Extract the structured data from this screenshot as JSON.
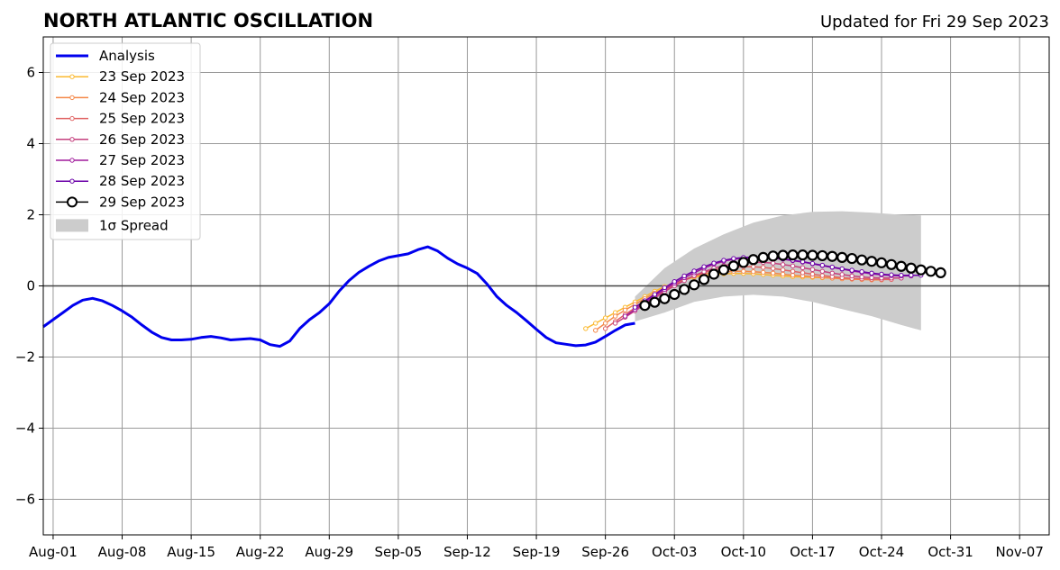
{
  "chart_data": {
    "type": "line",
    "title": "NORTH ATLANTIC OSCILLATION",
    "subtitle": "Updated for Fri 29 Sep 2023",
    "xlabel": "",
    "ylabel": "",
    "xlim": [
      "2023-07-31",
      "2023-11-10"
    ],
    "ylim": [
      -7,
      7
    ],
    "grid": true,
    "legend_position": "top-left",
    "x_ticks": [
      {
        "date": "2023-08-01",
        "label": "Aug-01"
      },
      {
        "date": "2023-08-08",
        "label": "Aug-08"
      },
      {
        "date": "2023-08-15",
        "label": "Aug-15"
      },
      {
        "date": "2023-08-22",
        "label": "Aug-22"
      },
      {
        "date": "2023-08-29",
        "label": "Aug-29"
      },
      {
        "date": "2023-09-05",
        "label": "Sep-05"
      },
      {
        "date": "2023-09-12",
        "label": "Sep-12"
      },
      {
        "date": "2023-09-19",
        "label": "Sep-19"
      },
      {
        "date": "2023-09-26",
        "label": "Sep-26"
      },
      {
        "date": "2023-10-03",
        "label": "Oct-03"
      },
      {
        "date": "2023-10-10",
        "label": "Oct-10"
      },
      {
        "date": "2023-10-17",
        "label": "Oct-17"
      },
      {
        "date": "2023-10-24",
        "label": "Oct-24"
      },
      {
        "date": "2023-10-31",
        "label": "Oct-31"
      },
      {
        "date": "2023-11-07",
        "label": "Nov-07"
      }
    ],
    "y_ticks": [
      {
        "value": -6,
        "label": "−6"
      },
      {
        "value": -4,
        "label": "−4"
      },
      {
        "value": -2,
        "label": "−2"
      },
      {
        "value": 0,
        "label": "0"
      },
      {
        "value": 2,
        "label": "2"
      },
      {
        "value": 4,
        "label": "4"
      },
      {
        "value": 6,
        "label": "6"
      }
    ],
    "analysis": {
      "name": "Analysis",
      "color": "#0000ee",
      "start_date": "2023-07-31",
      "values": [
        -1.15,
        -0.95,
        -0.75,
        -0.55,
        -0.4,
        -0.35,
        -0.42,
        -0.55,
        -0.7,
        -0.88,
        -1.1,
        -1.3,
        -1.45,
        -1.52,
        -1.52,
        -1.5,
        -1.45,
        -1.42,
        -1.46,
        -1.52,
        -1.5,
        -1.48,
        -1.52,
        -1.65,
        -1.7,
        -1.55,
        -1.2,
        -0.95,
        -0.75,
        -0.5,
        -0.15,
        0.15,
        0.38,
        0.55,
        0.7,
        0.8,
        0.85,
        0.9,
        1.02,
        1.1,
        0.98,
        0.78,
        0.62,
        0.5,
        0.35,
        0.05,
        -0.3,
        -0.55,
        -0.75,
        -0.98,
        -1.22,
        -1.45,
        -1.6,
        -1.64,
        -1.68,
        -1.66,
        -1.58,
        -1.42,
        -1.25,
        -1.1,
        -1.05
      ]
    },
    "forecasts": [
      {
        "name": "23 Sep 2023",
        "color": "#fbb92f",
        "start_date": "2023-09-24",
        "values": [
          -1.2,
          -1.05,
          -0.9,
          -0.75,
          -0.6,
          -0.45,
          -0.3,
          -0.15,
          -0.02,
          0.08,
          0.17,
          0.24,
          0.29,
          0.32,
          0.34,
          0.35,
          0.35,
          0.34,
          0.32,
          0.3,
          0.28,
          0.26,
          0.25,
          0.24,
          0.23,
          0.22,
          0.21,
          0.2,
          0.2,
          0.2
        ]
      },
      {
        "name": "24 Sep 2023",
        "color": "#f48849",
        "start_date": "2023-09-25",
        "values": [
          -1.25,
          -1.05,
          -0.85,
          -0.68,
          -0.52,
          -0.36,
          -0.2,
          -0.06,
          0.07,
          0.18,
          0.27,
          0.34,
          0.38,
          0.4,
          0.41,
          0.41,
          0.4,
          0.38,
          0.36,
          0.33,
          0.3,
          0.28,
          0.26,
          0.24,
          0.22,
          0.2,
          0.19,
          0.18,
          0.17,
          0.17
        ]
      },
      {
        "name": "25 Sep 2023",
        "color": "#e06363",
        "start_date": "2023-09-26",
        "values": [
          -1.2,
          -1.0,
          -0.8,
          -0.62,
          -0.45,
          -0.28,
          -0.12,
          0.03,
          0.16,
          0.28,
          0.38,
          0.45,
          0.5,
          0.53,
          0.54,
          0.54,
          0.52,
          0.49,
          0.45,
          0.41,
          0.37,
          0.33,
          0.29,
          0.26,
          0.23,
          0.21,
          0.2,
          0.19,
          0.18,
          0.18
        ]
      },
      {
        "name": "26 Sep 2023",
        "color": "#c5407e",
        "start_date": "2023-09-27",
        "values": [
          -1.05,
          -0.88,
          -0.7,
          -0.52,
          -0.34,
          -0.16,
          0.0,
          0.15,
          0.29,
          0.4,
          0.5,
          0.57,
          0.62,
          0.65,
          0.66,
          0.66,
          0.64,
          0.6,
          0.56,
          0.51,
          0.46,
          0.41,
          0.36,
          0.32,
          0.28,
          0.25,
          0.23,
          0.22,
          0.22,
          0.22
        ]
      },
      {
        "name": "27 Sep 2023",
        "color": "#a01a9c",
        "start_date": "2023-09-28",
        "values": [
          -0.85,
          -0.66,
          -0.47,
          -0.28,
          -0.1,
          0.07,
          0.23,
          0.37,
          0.5,
          0.61,
          0.69,
          0.75,
          0.78,
          0.79,
          0.79,
          0.78,
          0.75,
          0.71,
          0.67,
          0.62,
          0.57,
          0.52,
          0.47,
          0.42,
          0.38,
          0.34,
          0.31,
          0.29,
          0.28,
          0.28
        ]
      },
      {
        "name": "28 Sep 2023",
        "color": "#6a00a8",
        "start_date": "2023-09-29",
        "values": [
          -0.6,
          -0.42,
          -0.24,
          -0.05,
          0.12,
          0.28,
          0.42,
          0.54,
          0.64,
          0.72,
          0.77,
          0.8,
          0.81,
          0.81,
          0.79,
          0.76,
          0.72,
          0.68,
          0.63,
          0.58,
          0.53,
          0.48,
          0.44,
          0.4,
          0.36,
          0.33,
          0.31,
          0.3,
          0.3,
          0.3
        ]
      }
    ],
    "latest": {
      "name": "29 Sep 2023",
      "color": "#000000",
      "start_date": "2023-09-30",
      "values": [
        -0.55,
        -0.46,
        -0.36,
        -0.24,
        -0.1,
        0.03,
        0.18,
        0.33,
        0.45,
        0.56,
        0.66,
        0.74,
        0.8,
        0.84,
        0.86,
        0.87,
        0.87,
        0.86,
        0.85,
        0.83,
        0.8,
        0.77,
        0.73,
        0.69,
        0.65,
        0.6,
        0.55,
        0.5,
        0.45,
        0.41,
        0.37
      ]
    },
    "spread": {
      "name": "1σ Spread",
      "color": "#cccccc",
      "dates": [
        "2023-09-29",
        "2023-10-02",
        "2023-10-05",
        "2023-10-08",
        "2023-10-11",
        "2023-10-14",
        "2023-10-17",
        "2023-10-20",
        "2023-10-23",
        "2023-10-26",
        "2023-10-28"
      ],
      "upper": [
        -0.3,
        0.5,
        1.05,
        1.45,
        1.78,
        1.98,
        2.08,
        2.1,
        2.06,
        2.0,
        1.98
      ],
      "lower": [
        -1.0,
        -0.75,
        -0.45,
        -0.3,
        -0.25,
        -0.3,
        -0.45,
        -0.65,
        -0.85,
        -1.1,
        -1.25
      ]
    }
  }
}
